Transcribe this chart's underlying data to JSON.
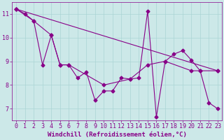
{
  "xlabel": "Windchill (Refroidissement éolien,°C)",
  "x": [
    0,
    1,
    2,
    3,
    4,
    5,
    6,
    7,
    8,
    9,
    10,
    11,
    12,
    13,
    14,
    15,
    16,
    17,
    18,
    19,
    20,
    21,
    22,
    23
  ],
  "line1": [
    11.2,
    11.0,
    10.7,
    8.85,
    10.1,
    8.85,
    8.85,
    8.3,
    8.55,
    7.35,
    7.75,
    7.75,
    8.3,
    8.25,
    8.3,
    11.1,
    6.65,
    9.0,
    9.3,
    9.45,
    9.05,
    8.6,
    7.25,
    7.0
  ],
  "line2_x": [
    0,
    2,
    4,
    5,
    6,
    10,
    13,
    15,
    17,
    20,
    21,
    23
  ],
  "line2_y": [
    11.2,
    10.7,
    10.1,
    8.85,
    8.85,
    8.0,
    8.25,
    8.85,
    9.0,
    8.6,
    8.6,
    8.6
  ],
  "line3_x": [
    0,
    23
  ],
  "line3_y": [
    11.2,
    8.6
  ],
  "bg_color": "#cce8e8",
  "line_color": "#880088",
  "grid_color": "#aad4d4",
  "axis_color": "#880088",
  "tick_color": "#880088",
  "marker": "D",
  "markersize": 2.5,
  "linewidth": 0.8,
  "xlim": [
    -0.5,
    23.5
  ],
  "ylim": [
    6.5,
    11.5
  ],
  "yticks": [
    7,
    8,
    9,
    10,
    11
  ],
  "xticks": [
    0,
    1,
    2,
    3,
    4,
    5,
    6,
    7,
    8,
    9,
    10,
    11,
    12,
    13,
    14,
    15,
    16,
    17,
    18,
    19,
    20,
    21,
    22,
    23
  ],
  "xlabel_fontsize": 6.5,
  "tick_fontsize": 6.0
}
